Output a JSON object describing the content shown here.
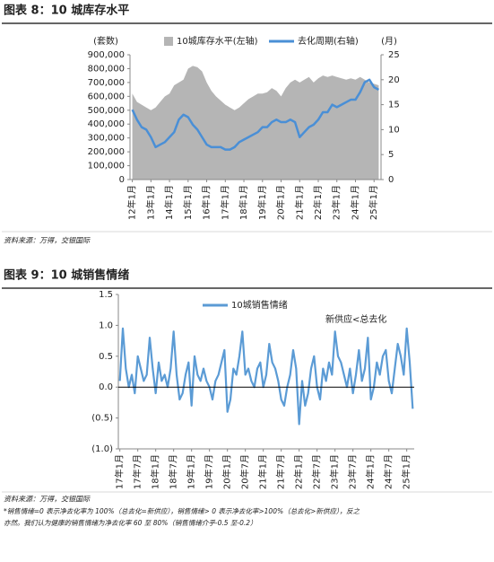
{
  "chart_data": [
    {
      "type": "area",
      "title": "图表 8：10 城库存水平",
      "y_label": "(套数)",
      "y2_label": "(月)",
      "categories": [
        "12年1月",
        null,
        null,
        null,
        "13年1月",
        null,
        null,
        null,
        "14年1月",
        null,
        null,
        null,
        "15年1月",
        null,
        null,
        null,
        "16年1月",
        null,
        null,
        null,
        "17年1月",
        null,
        null,
        null,
        "18年1月",
        null,
        null,
        null,
        "19年1月",
        null,
        null,
        null,
        "20年1月",
        null,
        null,
        null,
        "21年1月",
        null,
        null,
        null,
        "22年1月",
        null,
        null,
        null,
        "23年1月",
        null,
        null,
        null,
        "24年1月",
        null,
        null,
        null,
        "25年1月",
        null
      ],
      "series": [
        {
          "name": "10城库存水平(左轴)",
          "type": "area",
          "color": "#b5b5b5",
          "values": [
            620000,
            560000,
            540000,
            520000,
            500000,
            520000,
            560000,
            600000,
            620000,
            680000,
            700000,
            720000,
            800000,
            820000,
            810000,
            780000,
            700000,
            640000,
            600000,
            570000,
            540000,
            520000,
            500000,
            520000,
            550000,
            580000,
            600000,
            620000,
            620000,
            630000,
            660000,
            640000,
            600000,
            660000,
            700000,
            720000,
            700000,
            720000,
            740000,
            700000,
            730000,
            750000,
            740000,
            750000,
            740000,
            730000,
            720000,
            730000,
            720000,
            740000,
            720000,
            700000,
            690000,
            680000
          ]
        },
        {
          "name": "去化周期(右轴)",
          "type": "line",
          "axis": "y2",
          "color": "#4a8fd6",
          "values": [
            14,
            12,
            10.5,
            10,
            8.5,
            6.5,
            7,
            7.5,
            8.5,
            9.5,
            12,
            13,
            12.5,
            11,
            10,
            8.5,
            7,
            6.5,
            6.5,
            6.5,
            6,
            6,
            6.5,
            7.5,
            8,
            8.5,
            9,
            9.5,
            10.5,
            10.5,
            11.5,
            12,
            11.5,
            11.5,
            12,
            11.5,
            8.5,
            9.5,
            10.5,
            11,
            12,
            13.5,
            13.5,
            15,
            14.5,
            15,
            15.5,
            16,
            16,
            17.5,
            19.5,
            20,
            18.5,
            18
          ]
        }
      ],
      "ylim": [
        0,
        900000
      ],
      "yticks": [
        0,
        {
          "value": 100000,
          "label": "100,000"
        },
        {
          "value": 200000,
          "label": "200,000"
        },
        {
          "value": 300000,
          "label": "300,000"
        },
        {
          "value": 400000,
          "label": "400,000"
        },
        {
          "value": 500000,
          "label": "500,000"
        },
        {
          "value": 600000,
          "label": "600,000"
        },
        {
          "value": 700000,
          "label": "700,000"
        },
        {
          "value": 800000,
          "label": "800,000"
        },
        {
          "value": 900000,
          "label": "900,000"
        }
      ],
      "y2lim": [
        0,
        25
      ],
      "y2ticks": [
        0,
        5,
        10,
        15,
        20,
        25
      ],
      "grid": false,
      "source": "资料来源：万得，交银国际"
    },
    {
      "type": "line",
      "title": "图表 9：10 城销售情绪",
      "annotations": [
        "新供应<总去化"
      ],
      "categories": [
        "17年1月",
        null,
        null,
        null,
        null,
        null,
        "17年7月",
        null,
        null,
        null,
        null,
        null,
        "18年1月",
        null,
        null,
        null,
        null,
        null,
        "18年7月",
        null,
        null,
        null,
        null,
        null,
        "19年1月",
        null,
        null,
        null,
        null,
        null,
        "19年7月",
        null,
        null,
        null,
        null,
        null,
        "20年1月",
        null,
        null,
        null,
        null,
        null,
        "20年7月",
        null,
        null,
        null,
        null,
        null,
        "21年1月",
        null,
        null,
        null,
        null,
        null,
        "21年7月",
        null,
        null,
        null,
        null,
        null,
        "22年1月",
        null,
        null,
        null,
        null,
        null,
        "22年7月",
        null,
        null,
        null,
        null,
        null,
        "23年1月",
        null,
        null,
        null,
        null,
        null,
        "23年7月",
        null,
        null,
        null,
        null,
        null,
        "24年1月",
        null,
        null,
        null,
        null,
        null,
        "24年7月",
        null,
        null,
        null,
        null,
        null,
        "25年1月",
        null,
        null
      ],
      "series": [
        {
          "name": "10城销售情绪",
          "type": "line",
          "color": "#5b9bd5",
          "values": [
            0.1,
            0.95,
            0.3,
            0.0,
            0.2,
            -0.1,
            0.5,
            0.3,
            0.1,
            0.2,
            0.8,
            0.3,
            -0.1,
            0.4,
            0.1,
            0.2,
            0.0,
            0.3,
            0.9,
            0.2,
            -0.2,
            -0.1,
            0.2,
            0.4,
            -0.3,
            0.5,
            0.2,
            0.1,
            0.3,
            0.1,
            0.0,
            -0.2,
            0.1,
            0.2,
            0.4,
            0.6,
            -0.4,
            -0.2,
            0.3,
            0.2,
            0.5,
            0.9,
            0.2,
            0.3,
            0.1,
            0.0,
            0.3,
            0.4,
            0.0,
            0.2,
            0.7,
            0.4,
            0.3,
            0.1,
            -0.2,
            -0.3,
            0.0,
            0.2,
            0.6,
            0.3,
            -0.6,
            0.1,
            -0.3,
            -0.1,
            0.3,
            0.5,
            0.0,
            -0.2,
            0.3,
            0.1,
            0.4,
            0.2,
            0.9,
            0.5,
            0.4,
            0.2,
            0.0,
            0.3,
            -0.1,
            0.2,
            0.6,
            0.1,
            0.3,
            0.8,
            -0.2,
            0.0,
            0.4,
            0.2,
            0.5,
            0.6,
            0.1,
            -0.1,
            0.3,
            0.7,
            0.5,
            0.2,
            0.95,
            0.4,
            -0.35
          ]
        }
      ],
      "ylim": [
        -1,
        1.5
      ],
      "yticks": [
        {
          "value": -1,
          "label": "(1.0)"
        },
        {
          "value": -0.5,
          "label": "(0.5)"
        },
        {
          "value": 0,
          "label": "0.0"
        },
        {
          "value": 0.5,
          "label": "0.5"
        },
        {
          "value": 1,
          "label": "1.0"
        },
        {
          "value": 1.5,
          "label": "1.5"
        }
      ],
      "grid": false,
      "source": "资料来源：万得，交银国际",
      "notes": [
        "*销售情绪=0 表示净去化率为 100%（总去化=新供应），销售情绪> 0 表示净去化率>100%（总去化>新供应），反之",
        "亦然。我们认为健康的销售情绪为净去化率 60 至 80%（销售情绪介乎-0.5 至-0.2）"
      ]
    }
  ]
}
